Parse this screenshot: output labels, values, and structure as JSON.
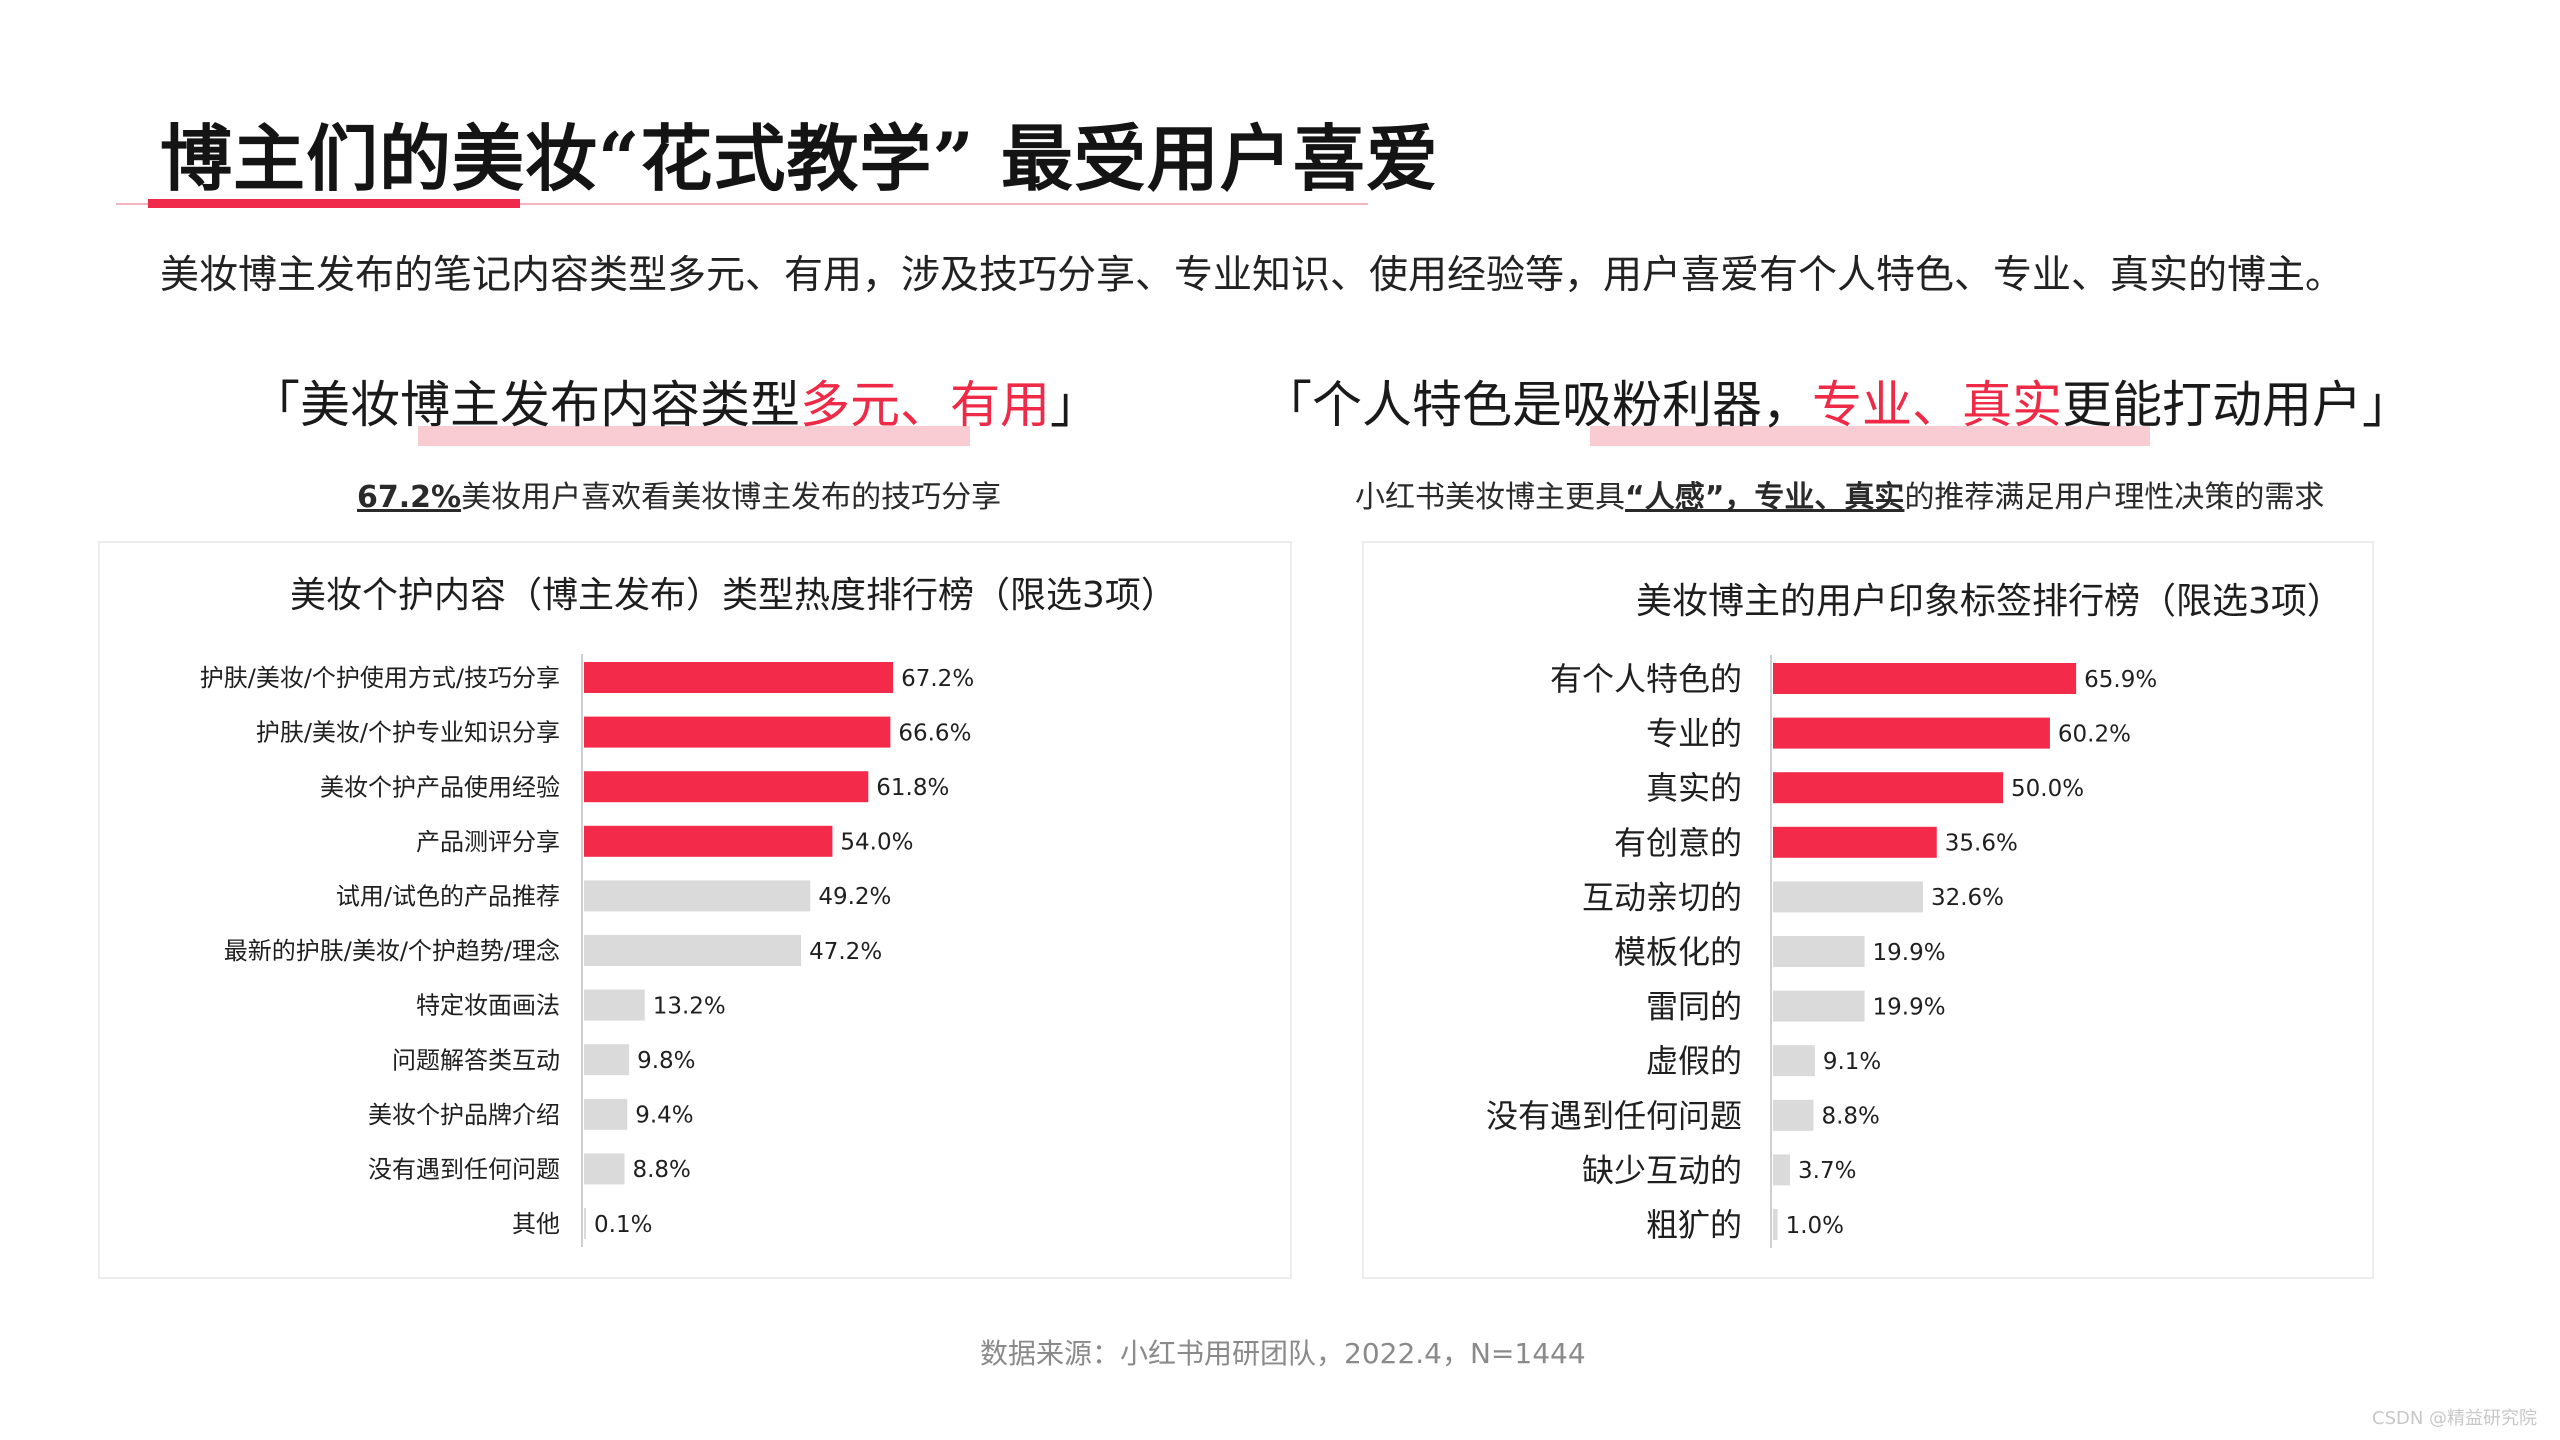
{
  "title": "博主们的美妆“花式教学” 最受用户喜爱",
  "subtitle": "美妆博主发布的笔记内容类型多元、有用，涉及技巧分享、专业知识、使用经验等，用户喜爱有个人特色、专业、真实的博主。",
  "left": {
    "headline_pre": "「美妆博主发布内容类型",
    "headline_red": "多元、有用",
    "headline_post": "」",
    "note_bold": "67.2%",
    "note_rest": "美妆用户喜欢看美妆博主发布的技巧分享"
  },
  "right": {
    "headline_pre": "「个人特色是吸粉利器，",
    "headline_red": "专业、真实",
    "headline_post": "更能打动用户」",
    "note_pre": "小红书美妆博主更具",
    "note_bold": "“人感”，专业、真实",
    "note_rest": "的推荐满足用户理性决策的需求"
  },
  "chart_data": [
    {
      "type": "bar",
      "orientation": "horizontal",
      "title": "美妆个护内容（博主发布）类型热度排行榜（限选3项）",
      "categories": [
        "护肤/美妆/个护使用方式/技巧分享",
        "护肤/美妆/个护专业知识分享",
        "美妆个护产品使用经验",
        "产品测评分享",
        "试用/试色的产品推荐",
        "最新的护肤/美妆/个护趋势/理念",
        "特定妆面画法",
        "问题解答类互动",
        "美妆个护品牌介绍",
        "没有遇到任何问题",
        "其他"
      ],
      "values": [
        67.2,
        66.6,
        61.8,
        54.0,
        49.2,
        47.2,
        13.2,
        9.8,
        9.4,
        8.8,
        0.1
      ],
      "value_labels": [
        "67.2%",
        "66.6%",
        "61.8%",
        "54.0%",
        "49.2%",
        "47.2%",
        "13.2%",
        "9.8%",
        "9.4%",
        "8.8%",
        "0.1%"
      ],
      "highlight_count": 4,
      "colors": {
        "highlight": "#f42a4b",
        "normal": "#dadada"
      },
      "xlim": [
        0,
        100
      ],
      "grid": false
    },
    {
      "type": "bar",
      "orientation": "horizontal",
      "title": "美妆博主的用户印象标签排行榜（限选3项）",
      "categories": [
        "有个人特色的",
        "专业的",
        "真实的",
        "有创意的",
        "互动亲切的",
        "模板化的",
        "雷同的",
        "虚假的",
        "没有遇到任何问题",
        "缺少互动的",
        "粗犷的"
      ],
      "values": [
        65.9,
        60.2,
        50.0,
        35.6,
        32.6,
        19.9,
        19.9,
        9.1,
        8.8,
        3.7,
        1.0
      ],
      "value_labels": [
        "65.9%",
        "60.2%",
        "50.0%",
        "35.6%",
        "32.6%",
        "19.9%",
        "19.9%",
        "9.1%",
        "8.8%",
        "3.7%",
        "1.0%"
      ],
      "highlight_count": 4,
      "colors": {
        "highlight": "#f42a4b",
        "normal": "#dadada"
      },
      "xlim": [
        0,
        100
      ],
      "grid": false
    }
  ],
  "source": "数据来源：小红书用研团队，2022.4，N=1444",
  "watermark": "CSDN @精益研究院"
}
